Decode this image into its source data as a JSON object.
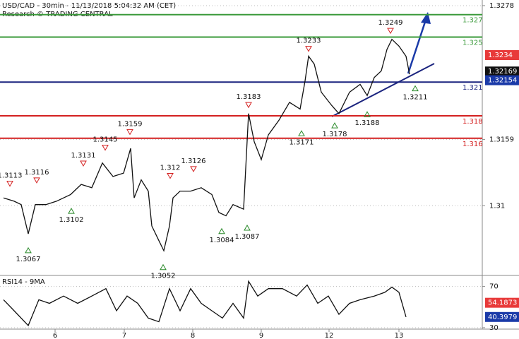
{
  "chart_data": [
    {
      "type": "line",
      "title": "USD/CAD - 30min - 11/13/2018 5:04:32 AM (CET)",
      "subtitle": "Research © TRADING CENTRAL",
      "x": [
        2.5,
        10,
        15,
        20,
        25,
        32.5,
        40,
        50,
        57.5,
        65,
        72.5,
        80,
        87.5,
        92.5,
        95,
        100,
        105,
        107.5,
        112.5,
        116,
        120,
        122.5,
        127.5,
        135,
        142.5,
        150,
        155,
        160,
        165,
        172.5,
        176,
        180,
        185,
        190,
        197.5,
        205,
        212.5,
        216,
        218.5,
        222.5,
        227.5,
        235,
        240,
        247.5,
        255,
        260,
        265,
        270,
        274,
        277.5,
        282.5,
        287.5,
        290
      ],
      "series": [
        {
          "color": "#111111",
          "values": [
            1.3107,
            1.3104,
            1.3101,
            1.3075,
            1.3101,
            1.3101,
            1.3104,
            1.311,
            1.3119,
            1.3116,
            1.3138,
            1.3126,
            1.3129,
            1.3151,
            1.3107,
            1.3123,
            1.3113,
            1.3082,
            1.3069,
            1.306,
            1.3082,
            1.3107,
            1.3113,
            1.3113,
            1.3116,
            1.311,
            1.3094,
            1.3091,
            1.3101,
            1.3097,
            1.3182,
            1.3157,
            1.3141,
            1.3163,
            1.3176,
            1.3192,
            1.3186,
            1.3211,
            1.3233,
            1.3226,
            1.3201,
            1.3189,
            1.3182,
            1.3201,
            1.3208,
            1.3198,
            1.3214,
            1.322,
            1.3239,
            1.3248,
            1.3242,
            1.3233,
            1.3217
          ]
        }
      ],
      "xlim": [
        0,
        341.5
      ],
      "xticks": [
        {
          "value": 39,
          "label": "6"
        },
        {
          "value": 88,
          "label": "7"
        },
        {
          "value": 136.5,
          "label": "8"
        },
        {
          "value": 185,
          "label": "9"
        },
        {
          "value": 233,
          "label": "12"
        },
        {
          "value": 282.5,
          "label": "13"
        }
      ],
      "ylim": [
        1.3038,
        1.3283
      ],
      "yticks": [
        1.3278,
        1.3159,
        1.31
      ],
      "grid": true,
      "levels": [
        {
          "value": 1.327,
          "color": "#3a9a3a"
        },
        {
          "value": 1.325,
          "color": "#3a9a3a"
        },
        {
          "value": 1.321,
          "color": "#1a237e"
        },
        {
          "value": 1.318,
          "color": "#d42020"
        },
        {
          "value": 1.316,
          "color": "#d42020"
        }
      ],
      "markers": [
        {
          "value": 1.3234,
          "color": "#e83a3a"
        },
        {
          "value": 1.32169,
          "color": "#111111"
        },
        {
          "value": 1.32154,
          "color": "#1a3aa8"
        }
      ],
      "points": [
        {
          "x": 7,
          "value": 1.3113,
          "kind": "high"
        },
        {
          "x": 26,
          "value": 1.3116,
          "kind": "high"
        },
        {
          "x": 20,
          "value": 1.3067,
          "kind": "low"
        },
        {
          "x": 50.5,
          "value": 1.3102,
          "kind": "low"
        },
        {
          "x": 59,
          "value": 1.3131,
          "kind": "high"
        },
        {
          "x": 74.5,
          "value": 1.3145,
          "kind": "high"
        },
        {
          "x": 92,
          "value": 1.3159,
          "kind": "high"
        },
        {
          "x": 115.5,
          "value": 1.3052,
          "kind": "low"
        },
        {
          "x": 120.5,
          "value": 1.312,
          "kind": "high"
        },
        {
          "x": 137,
          "value": 1.3126,
          "kind": "high"
        },
        {
          "x": 157,
          "value": 1.3084,
          "kind": "low"
        },
        {
          "x": 175,
          "value": 1.3087,
          "kind": "low"
        },
        {
          "x": 176,
          "value": 1.3183,
          "kind": "high"
        },
        {
          "x": 213.5,
          "value": 1.3171,
          "kind": "low"
        },
        {
          "x": 218.5,
          "value": 1.3233,
          "kind": "high"
        },
        {
          "x": 237,
          "value": 1.3178,
          "kind": "low"
        },
        {
          "x": 260,
          "value": 1.3188,
          "kind": "low"
        },
        {
          "x": 276.5,
          "value": 1.3249,
          "kind": "high"
        },
        {
          "x": 294,
          "value": 1.3211,
          "kind": "low"
        }
      ]
    },
    {
      "type": "line",
      "title": "RSI14 - 9MA",
      "x": [
        2.5,
        10,
        20,
        27.5,
        35,
        45,
        55,
        65,
        75,
        82.5,
        90,
        97.5,
        105,
        112.5,
        120,
        127.5,
        135,
        142.5,
        150,
        157.5,
        165,
        172.5,
        176,
        182.5,
        190,
        200,
        210,
        217.5,
        225,
        232.5,
        240,
        247.5,
        255,
        265,
        272.5,
        277.5,
        282.5,
        287.5
      ],
      "series": [
        {
          "color": "#111111",
          "values": [
            57.1,
            46.4,
            32.1,
            57.1,
            53.6,
            60.7,
            53.6,
            60.7,
            67.9,
            46.4,
            60.7,
            53.6,
            39.3,
            35.7,
            67.9,
            46.4,
            67.9,
            53.6,
            46.4,
            39.3,
            53.6,
            39.3,
            75,
            60.7,
            67.9,
            67.9,
            60.7,
            71.4,
            53.6,
            60.7,
            42.9,
            53.6,
            57.1,
            60.7,
            64.3,
            69.3,
            64.3,
            40.4
          ]
        }
      ],
      "xlim": [
        0,
        341.5
      ],
      "ylim": [
        28.6,
        80.7
      ],
      "yticks": [
        70,
        30
      ],
      "markers": [
        {
          "value": 54.1873,
          "color": "#e83a3a"
        },
        {
          "value": 40.3979,
          "color": "#1a3aa8"
        }
      ]
    }
  ]
}
